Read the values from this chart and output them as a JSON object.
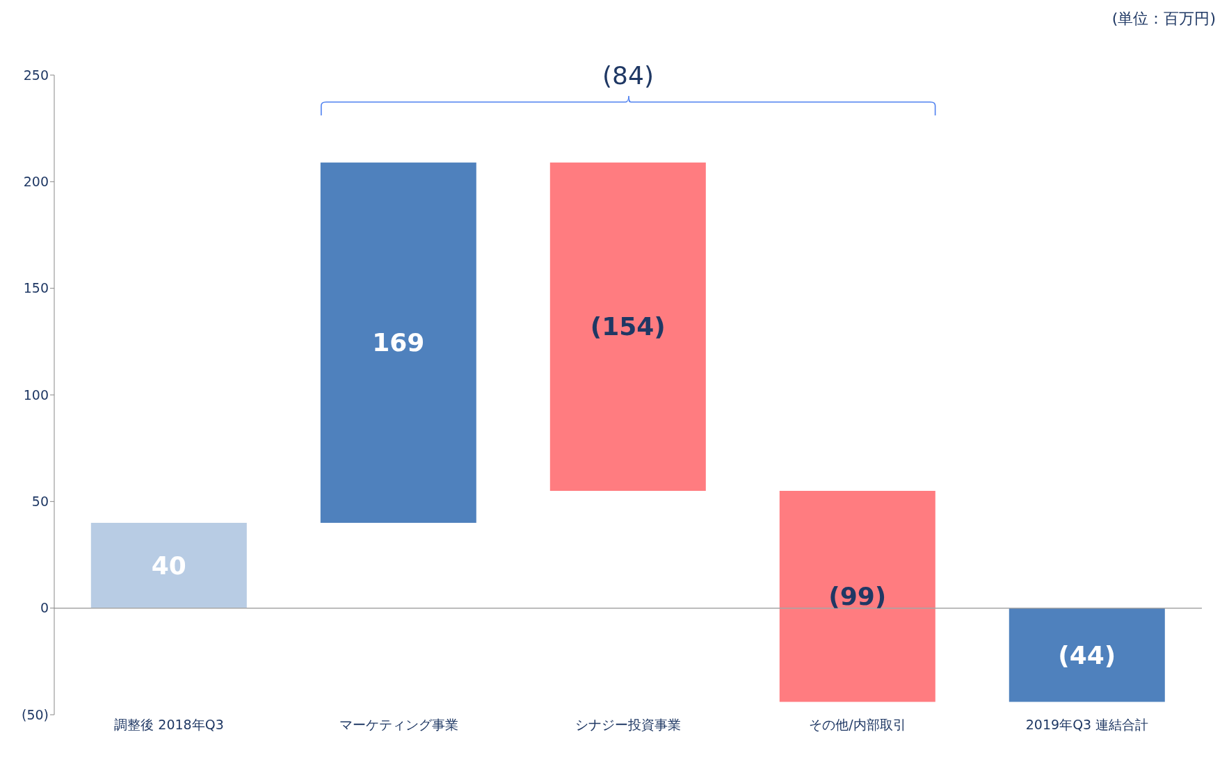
{
  "chart_data": {
    "type": "bar",
    "categories": [
      "調整後  2018年Q3",
      "マーケティング事業",
      "シナジー投資事業",
      "その他/内部取引",
      "2019年Q3 連結合計"
    ],
    "values": [
      40,
      169,
      -154,
      -99,
      -44
    ],
    "base": [
      0,
      40,
      209,
      55,
      0
    ],
    "colors": [
      "#b8cce4",
      "#4f81bd",
      "#ff7c80",
      "#ff7c80",
      "#4f81bd"
    ],
    "value_labels": [
      "40",
      "169",
      "(154)",
      "(99)",
      "(44)"
    ],
    "ylim": [
      -50,
      250
    ],
    "yticks": [
      {
        "value": -50,
        "label": "(50)"
      },
      0,
      50,
      100,
      150,
      200,
      250
    ],
    "grid": false,
    "legend": false,
    "ref_lines": [
      {
        "axis": "y",
        "value": 0,
        "color": "#a6a6a6"
      }
    ],
    "annotations": [
      "(単位：百万円)",
      "(84)"
    ]
  }
}
